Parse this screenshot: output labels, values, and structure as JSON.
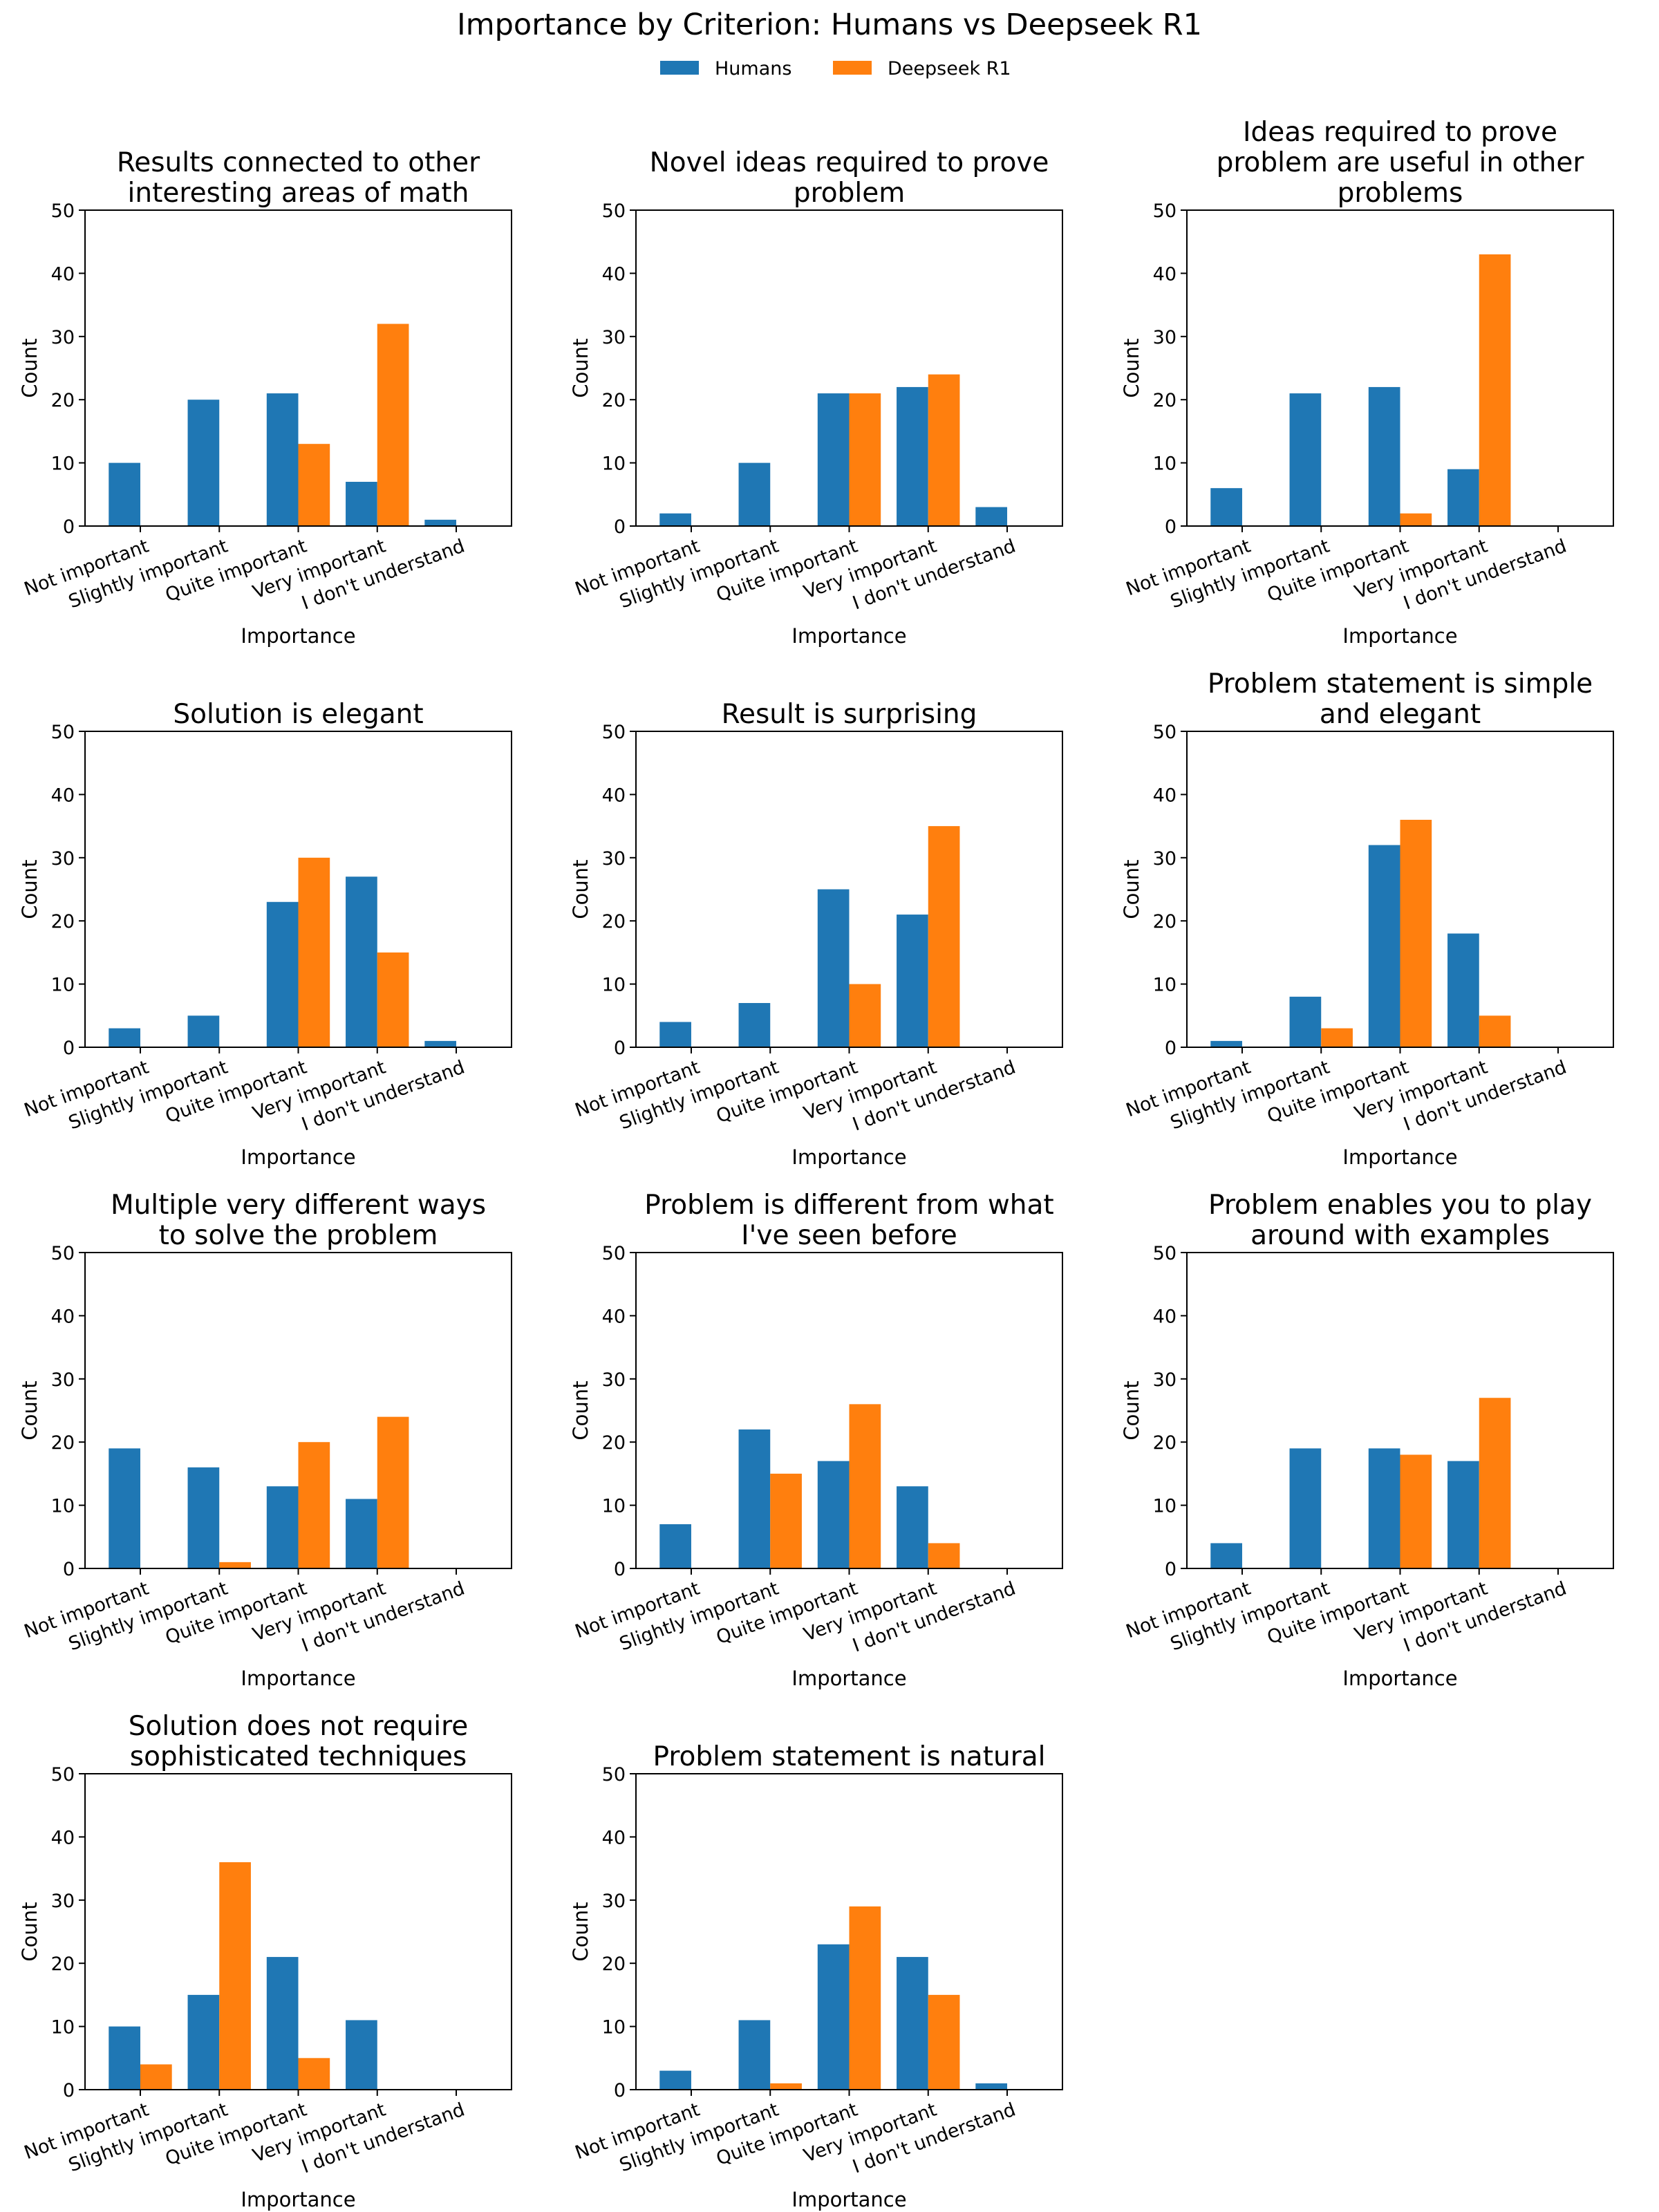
{
  "chart_data": {
    "type": "bar",
    "title": "Importance by Criterion: Humans vs Deepseek R1",
    "xlabel": "Importance",
    "ylabel": "Count",
    "ylim": [
      0,
      50
    ],
    "yticks": [
      0,
      10,
      20,
      30,
      40,
      50
    ],
    "categories": [
      "Not important",
      "Slightly important",
      "Quite important",
      "Very important",
      "I don't understand"
    ],
    "legend": {
      "position": "top-center",
      "entries": [
        "Humans",
        "Deepseek R1"
      ]
    },
    "colors": {
      "Humans": "#1f77b4",
      "Deepseek R1": "#ff7f0e"
    },
    "panels": [
      {
        "title": [
          "Results connected to other",
          "interesting areas of math"
        ],
        "humans": [
          10,
          20,
          21,
          7,
          1
        ],
        "deepseek": [
          0,
          0,
          13,
          32,
          0
        ]
      },
      {
        "title": [
          "Novel ideas required to prove",
          "problem"
        ],
        "humans": [
          2,
          10,
          21,
          22,
          3
        ],
        "deepseek": [
          0,
          0,
          21,
          24,
          0
        ]
      },
      {
        "title": [
          "Ideas required to prove",
          "problem are useful in other",
          "problems"
        ],
        "humans": [
          6,
          21,
          22,
          9,
          0
        ],
        "deepseek": [
          0,
          0,
          2,
          43,
          0
        ]
      },
      {
        "title": [
          "Solution is elegant"
        ],
        "humans": [
          3,
          5,
          23,
          27,
          1
        ],
        "deepseek": [
          0,
          0,
          30,
          15,
          0
        ]
      },
      {
        "title": [
          "Result is surprising"
        ],
        "humans": [
          4,
          7,
          25,
          21,
          0
        ],
        "deepseek": [
          0,
          0,
          10,
          35,
          0
        ]
      },
      {
        "title": [
          "Problem statement is simple",
          "and elegant"
        ],
        "humans": [
          1,
          8,
          32,
          18,
          0
        ],
        "deepseek": [
          0,
          3,
          36,
          5,
          0
        ]
      },
      {
        "title": [
          "Multiple very different ways",
          "to solve the problem"
        ],
        "humans": [
          19,
          16,
          13,
          11,
          0
        ],
        "deepseek": [
          0,
          1,
          20,
          24,
          0
        ]
      },
      {
        "title": [
          "Problem is different from what",
          "I've seen before"
        ],
        "humans": [
          7,
          22,
          17,
          13,
          0
        ],
        "deepseek": [
          0,
          15,
          26,
          4,
          0
        ]
      },
      {
        "title": [
          "Problem enables you to play",
          "around with examples"
        ],
        "humans": [
          4,
          19,
          19,
          17,
          0
        ],
        "deepseek": [
          0,
          0,
          18,
          27,
          0
        ]
      },
      {
        "title": [
          "Solution does not require",
          "sophisticated techniques"
        ],
        "humans": [
          10,
          15,
          21,
          11,
          0
        ],
        "deepseek": [
          4,
          36,
          5,
          0,
          0
        ]
      },
      {
        "title": [
          "Problem statement is natural"
        ],
        "humans": [
          3,
          11,
          23,
          21,
          1
        ],
        "deepseek": [
          0,
          1,
          29,
          15,
          0
        ]
      }
    ]
  }
}
